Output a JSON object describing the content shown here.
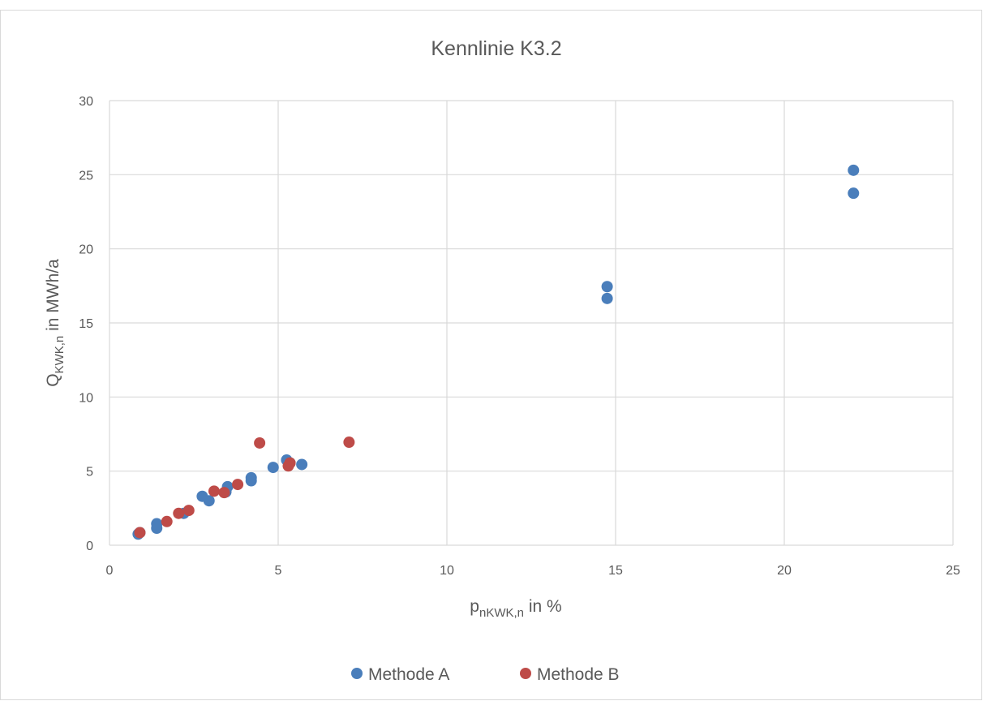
{
  "chart_data": {
    "type": "scatter",
    "title": "Kennlinie K3.2",
    "xlabel": {
      "base": "p",
      "sub": "nKWK,n",
      "suffix": " in %"
    },
    "ylabel": {
      "base": "Q",
      "sub": "KWK,n",
      "suffix": " in MWh/a"
    },
    "xlim": [
      0,
      25
    ],
    "ylim": [
      0,
      30
    ],
    "xticks": [
      0,
      5,
      10,
      15,
      20,
      25
    ],
    "yticks": [
      0,
      5,
      10,
      15,
      20,
      25,
      30
    ],
    "grid": true,
    "legend_position": "bottom",
    "series": [
      {
        "name": "Methode A",
        "color": "#4a7ebb",
        "points": [
          [
            0.85,
            0.75
          ],
          [
            0.9,
            0.85
          ],
          [
            1.4,
            1.15
          ],
          [
            1.4,
            1.45
          ],
          [
            2.2,
            2.15
          ],
          [
            2.75,
            3.3
          ],
          [
            2.95,
            3.0
          ],
          [
            3.45,
            3.6
          ],
          [
            3.5,
            3.95
          ],
          [
            4.2,
            4.35
          ],
          [
            4.2,
            4.55
          ],
          [
            4.85,
            5.25
          ],
          [
            5.25,
            5.75
          ],
          [
            5.35,
            5.55
          ],
          [
            5.7,
            5.45
          ],
          [
            14.75,
            16.65
          ],
          [
            14.75,
            17.45
          ],
          [
            22.05,
            23.75
          ],
          [
            22.05,
            25.3
          ]
        ]
      },
      {
        "name": "Methode B",
        "color": "#be4b48",
        "points": [
          [
            0.9,
            0.85
          ],
          [
            1.7,
            1.6
          ],
          [
            2.05,
            2.15
          ],
          [
            2.35,
            2.35
          ],
          [
            3.1,
            3.65
          ],
          [
            3.4,
            3.55
          ],
          [
            3.8,
            4.1
          ],
          [
            4.45,
            6.9
          ],
          [
            5.3,
            5.35
          ],
          [
            5.35,
            5.55
          ],
          [
            7.1,
            6.95
          ]
        ]
      }
    ]
  }
}
